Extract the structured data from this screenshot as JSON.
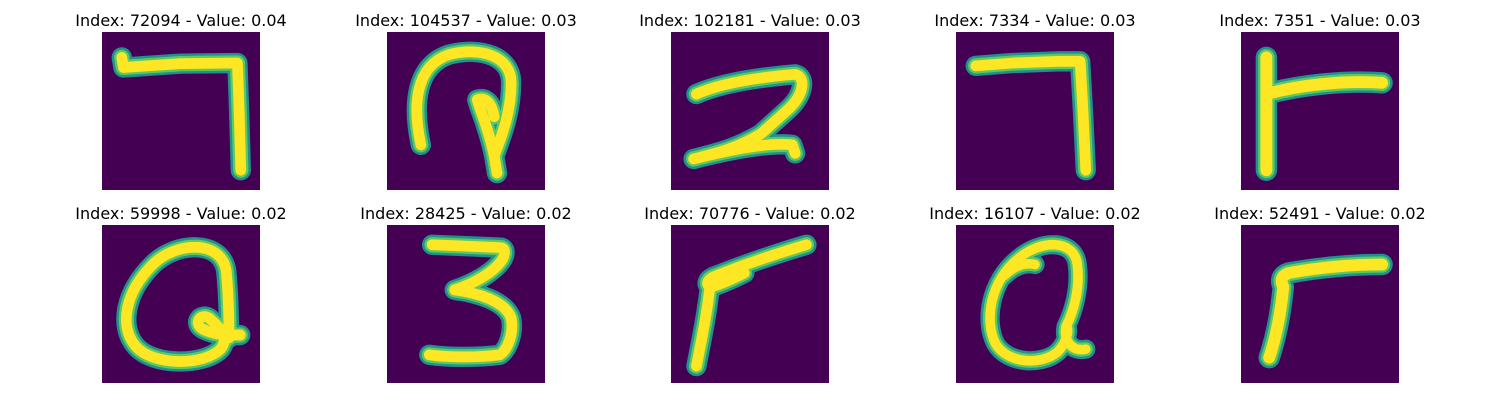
{
  "colors": {
    "background": "#440154",
    "stroke_edge": "#21918c",
    "stroke_mid": "#5ec962",
    "stroke_core": "#fde725"
  },
  "panels": [
    {
      "title": "Index: 72094 - Value: 0.04",
      "glyph": "seven-hooked"
    },
    {
      "title": "Index: 104537 - Value: 0.03",
      "glyph": "loop-stem"
    },
    {
      "title": "Index: 102181 - Value: 0.03",
      "glyph": "two"
    },
    {
      "title": "Index: 7334 - Value: 0.03",
      "glyph": "seven"
    },
    {
      "title": "Index: 7351 - Value: 0.03",
      "glyph": "t-bar"
    },
    {
      "title": "Index: 59998 - Value: 0.02",
      "glyph": "loop-tail"
    },
    {
      "title": "Index: 28425 - Value: 0.02",
      "glyph": "three"
    },
    {
      "title": "Index: 70776 - Value: 0.02",
      "glyph": "slanted-seven"
    },
    {
      "title": "Index: 16107 - Value: 0.02",
      "glyph": "loop-cross"
    },
    {
      "title": "Index: 52491 - Value: 0.02",
      "glyph": "r-shape"
    }
  ]
}
